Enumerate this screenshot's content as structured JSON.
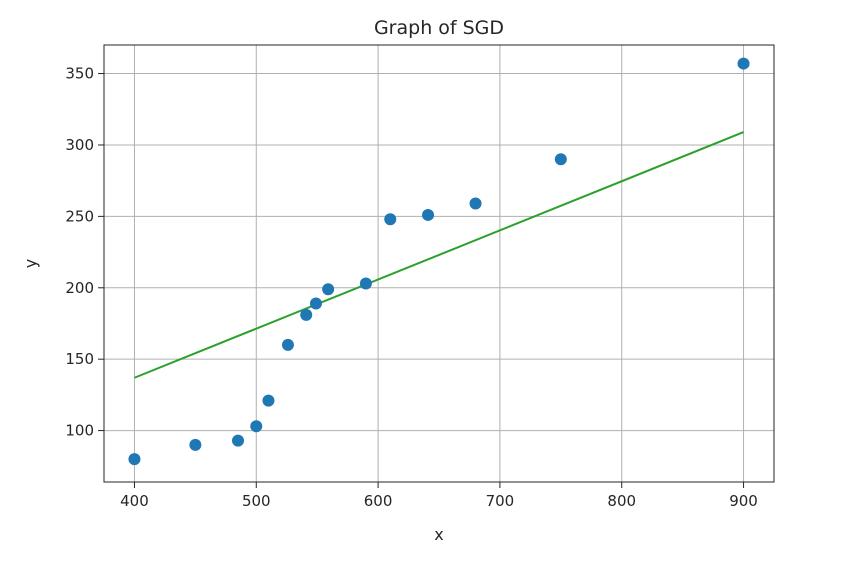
{
  "chart_data": {
    "type": "scatter",
    "title": "Graph of SGD",
    "xlabel": "x",
    "ylabel": "y",
    "xlim": [
      375,
      925
    ],
    "ylim": [
      64,
      370
    ],
    "xticks": [
      400,
      500,
      600,
      700,
      800,
      900
    ],
    "yticks": [
      100,
      150,
      200,
      250,
      300,
      350
    ],
    "xtick_labels": [
      "400",
      "500",
      "600",
      "700",
      "800",
      "900"
    ],
    "ytick_labels": [
      "100",
      "150",
      "200",
      "250",
      "300",
      "350"
    ],
    "grid": true,
    "series": [
      {
        "name": "data",
        "type": "scatter",
        "color": "#1f77b4",
        "points": [
          {
            "x": 400,
            "y": 80
          },
          {
            "x": 450,
            "y": 90
          },
          {
            "x": 485,
            "y": 93
          },
          {
            "x": 500,
            "y": 103
          },
          {
            "x": 510,
            "y": 121
          },
          {
            "x": 526,
            "y": 160
          },
          {
            "x": 541,
            "y": 181
          },
          {
            "x": 549,
            "y": 189
          },
          {
            "x": 559,
            "y": 199
          },
          {
            "x": 590,
            "y": 203
          },
          {
            "x": 610,
            "y": 248
          },
          {
            "x": 641,
            "y": 251
          },
          {
            "x": 680,
            "y": 259
          },
          {
            "x": 750,
            "y": 290
          },
          {
            "x": 900,
            "y": 357
          }
        ]
      },
      {
        "name": "fit",
        "type": "line",
        "color": "#2ca02c",
        "points": [
          {
            "x": 400,
            "y": 137
          },
          {
            "x": 900,
            "y": 309
          }
        ]
      }
    ]
  }
}
